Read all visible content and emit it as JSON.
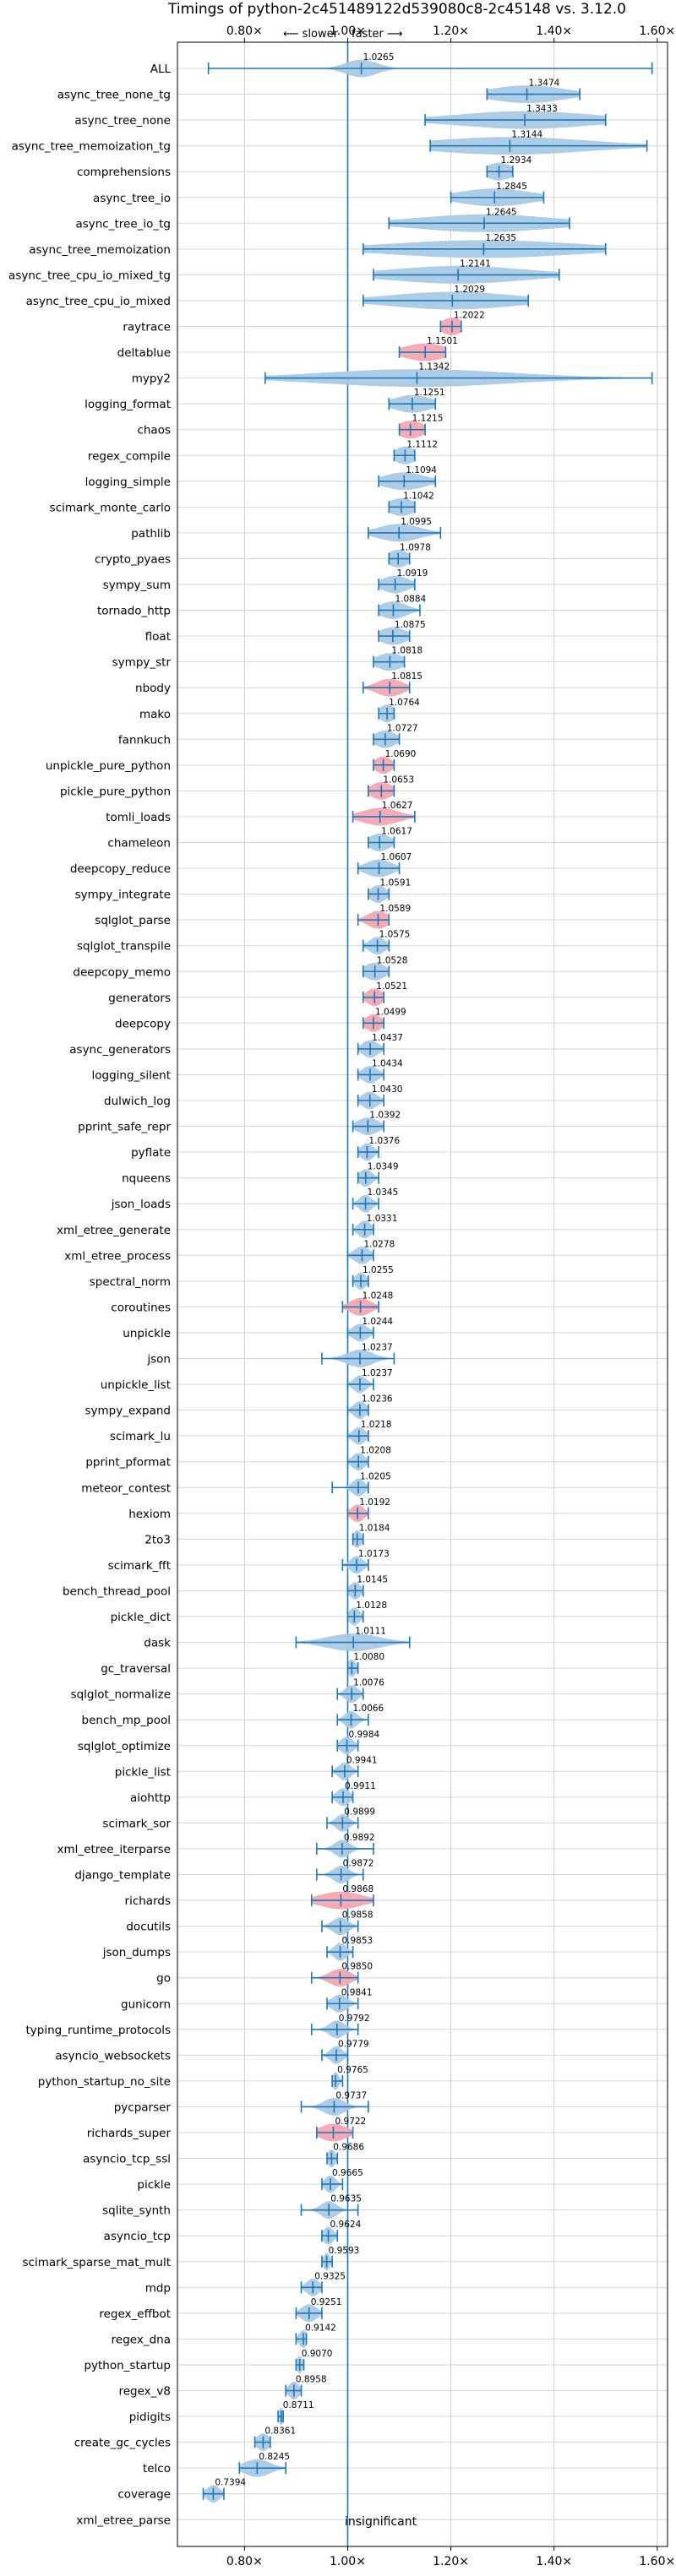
{
  "chart_data": {
    "type": "violin",
    "title": "Timings of python-2c451489122d539080c8-2c45148 vs. 3.12.0",
    "direction_labels": {
      "slower": "⟵ slower",
      "faster": "faster ⟶"
    },
    "x_ticks": [
      {
        "value": 0.8,
        "label": "0.80×"
      },
      {
        "value": 1.0,
        "label": "1.00×"
      },
      {
        "value": 1.2,
        "label": "1.20×"
      },
      {
        "value": 1.4,
        "label": "1.40×"
      },
      {
        "value": 1.6,
        "label": "1.60×"
      }
    ],
    "xlim": [
      0.67,
      1.62
    ],
    "grid": true,
    "annotation": "insignificant",
    "colors": {
      "normal": "#a9c9e4",
      "significant": "#f4a6b2",
      "line": "#1f77b4"
    },
    "benchmarks": [
      {
        "name": "ALL",
        "value": 1.0265,
        "min": 0.73,
        "max": 1.59,
        "spread": 0.03,
        "significant": false
      },
      {
        "name": "async_tree_none_tg",
        "value": 1.3474,
        "min": 1.27,
        "max": 1.45,
        "spread": 0.07,
        "significant": false
      },
      {
        "name": "async_tree_none",
        "value": 1.3433,
        "min": 1.15,
        "max": 1.5,
        "spread": 0.13,
        "significant": false
      },
      {
        "name": "async_tree_memoization_tg",
        "value": 1.3144,
        "min": 1.16,
        "max": 1.58,
        "spread": 0.15,
        "significant": false
      },
      {
        "name": "comprehensions",
        "value": 1.2934,
        "min": 1.27,
        "max": 1.32,
        "spread": 0.025,
        "significant": false
      },
      {
        "name": "async_tree_io",
        "value": 1.2845,
        "min": 1.2,
        "max": 1.38,
        "spread": 0.07,
        "significant": false
      },
      {
        "name": "async_tree_io_tg",
        "value": 1.2645,
        "min": 1.08,
        "max": 1.43,
        "spread": 0.13,
        "significant": false
      },
      {
        "name": "async_tree_memoization",
        "value": 1.2635,
        "min": 1.03,
        "max": 1.5,
        "spread": 0.18,
        "significant": false
      },
      {
        "name": "async_tree_cpu_io_mixed_tg",
        "value": 1.2141,
        "min": 1.05,
        "max": 1.41,
        "spread": 0.13,
        "significant": false
      },
      {
        "name": "async_tree_cpu_io_mixed",
        "value": 1.2029,
        "min": 1.03,
        "max": 1.35,
        "spread": 0.12,
        "significant": false
      },
      {
        "name": "raytrace",
        "value": 1.2022,
        "min": 1.18,
        "max": 1.22,
        "spread": 0.02,
        "significant": true
      },
      {
        "name": "deltablue",
        "value": 1.1501,
        "min": 1.1,
        "max": 1.19,
        "spread": 0.04,
        "significant": true
      },
      {
        "name": "mypy2",
        "value": 1.1342,
        "min": 0.84,
        "max": 1.59,
        "spread": 0.18,
        "significant": false
      },
      {
        "name": "logging_format",
        "value": 1.1251,
        "min": 1.08,
        "max": 1.17,
        "spread": 0.035,
        "significant": false
      },
      {
        "name": "chaos",
        "value": 1.1215,
        "min": 1.1,
        "max": 1.15,
        "spread": 0.025,
        "significant": true
      },
      {
        "name": "regex_compile",
        "value": 1.1112,
        "min": 1.09,
        "max": 1.13,
        "spread": 0.02,
        "significant": false
      },
      {
        "name": "logging_simple",
        "value": 1.1094,
        "min": 1.06,
        "max": 1.17,
        "spread": 0.04,
        "significant": false
      },
      {
        "name": "scimark_monte_carlo",
        "value": 1.1042,
        "min": 1.08,
        "max": 1.13,
        "spread": 0.025,
        "significant": false
      },
      {
        "name": "pathlib",
        "value": 1.0995,
        "min": 1.04,
        "max": 1.18,
        "spread": 0.04,
        "significant": false
      },
      {
        "name": "crypto_pyaes",
        "value": 1.0978,
        "min": 1.08,
        "max": 1.12,
        "spread": 0.02,
        "significant": false
      },
      {
        "name": "sympy_sum",
        "value": 1.0919,
        "min": 1.06,
        "max": 1.13,
        "spread": 0.025,
        "significant": false
      },
      {
        "name": "tornado_http",
        "value": 1.0884,
        "min": 1.06,
        "max": 1.14,
        "spread": 0.025,
        "significant": false
      },
      {
        "name": "float",
        "value": 1.0875,
        "min": 1.06,
        "max": 1.12,
        "spread": 0.025,
        "significant": false
      },
      {
        "name": "sympy_str",
        "value": 1.0818,
        "min": 1.05,
        "max": 1.11,
        "spread": 0.025,
        "significant": false
      },
      {
        "name": "nbody",
        "value": 1.0815,
        "min": 1.03,
        "max": 1.12,
        "spread": 0.025,
        "significant": true
      },
      {
        "name": "mako",
        "value": 1.0764,
        "min": 1.06,
        "max": 1.09,
        "spread": 0.015,
        "significant": false
      },
      {
        "name": "fannkuch",
        "value": 1.0727,
        "min": 1.05,
        "max": 1.1,
        "spread": 0.02,
        "significant": false
      },
      {
        "name": "unpickle_pure_python",
        "value": 1.069,
        "min": 1.05,
        "max": 1.09,
        "spread": 0.015,
        "significant": true
      },
      {
        "name": "pickle_pure_python",
        "value": 1.0653,
        "min": 1.04,
        "max": 1.09,
        "spread": 0.02,
        "significant": true
      },
      {
        "name": "tomli_loads",
        "value": 1.0627,
        "min": 1.01,
        "max": 1.13,
        "spread": 0.035,
        "significant": true
      },
      {
        "name": "chameleon",
        "value": 1.0617,
        "min": 1.04,
        "max": 1.09,
        "spread": 0.02,
        "significant": false
      },
      {
        "name": "deepcopy_reduce",
        "value": 1.0607,
        "min": 1.02,
        "max": 1.1,
        "spread": 0.025,
        "significant": false
      },
      {
        "name": "sympy_integrate",
        "value": 1.0591,
        "min": 1.04,
        "max": 1.08,
        "spread": 0.015,
        "significant": false
      },
      {
        "name": "sqlglot_parse",
        "value": 1.0589,
        "min": 1.02,
        "max": 1.08,
        "spread": 0.02,
        "significant": true
      },
      {
        "name": "sqlglot_transpile",
        "value": 1.0575,
        "min": 1.03,
        "max": 1.08,
        "spread": 0.015,
        "significant": false
      },
      {
        "name": "deepcopy_memo",
        "value": 1.0528,
        "min": 1.03,
        "max": 1.08,
        "spread": 0.02,
        "significant": false
      },
      {
        "name": "generators",
        "value": 1.0521,
        "min": 1.03,
        "max": 1.07,
        "spread": 0.015,
        "significant": true
      },
      {
        "name": "deepcopy",
        "value": 1.0499,
        "min": 1.03,
        "max": 1.07,
        "spread": 0.015,
        "significant": true
      },
      {
        "name": "async_generators",
        "value": 1.0437,
        "min": 1.02,
        "max": 1.07,
        "spread": 0.015,
        "significant": false
      },
      {
        "name": "logging_silent",
        "value": 1.0434,
        "min": 1.02,
        "max": 1.07,
        "spread": 0.015,
        "significant": false
      },
      {
        "name": "dulwich_log",
        "value": 1.043,
        "min": 1.02,
        "max": 1.07,
        "spread": 0.015,
        "significant": false
      },
      {
        "name": "pprint_safe_repr",
        "value": 1.0392,
        "min": 1.01,
        "max": 1.07,
        "spread": 0.02,
        "significant": false
      },
      {
        "name": "pyflate",
        "value": 1.0376,
        "min": 1.02,
        "max": 1.06,
        "spread": 0.012,
        "significant": false
      },
      {
        "name": "nqueens",
        "value": 1.0349,
        "min": 1.02,
        "max": 1.06,
        "spread": 0.012,
        "significant": false
      },
      {
        "name": "json_loads",
        "value": 1.0345,
        "min": 1.01,
        "max": 1.06,
        "spread": 0.012,
        "significant": false
      },
      {
        "name": "xml_etree_generate",
        "value": 1.0331,
        "min": 1.01,
        "max": 1.05,
        "spread": 0.012,
        "significant": false
      },
      {
        "name": "xml_etree_process",
        "value": 1.0278,
        "min": 1.0,
        "max": 1.05,
        "spread": 0.015,
        "significant": false
      },
      {
        "name": "spectral_norm",
        "value": 1.0255,
        "min": 1.01,
        "max": 1.04,
        "spread": 0.01,
        "significant": false
      },
      {
        "name": "coroutines",
        "value": 1.0248,
        "min": 0.99,
        "max": 1.06,
        "spread": 0.02,
        "significant": true
      },
      {
        "name": "unpickle",
        "value": 1.0244,
        "min": 1.0,
        "max": 1.05,
        "spread": 0.015,
        "significant": false
      },
      {
        "name": "json",
        "value": 1.0237,
        "min": 0.95,
        "max": 1.09,
        "spread": 0.025,
        "significant": false
      },
      {
        "name": "unpickle_list",
        "value": 1.0237,
        "min": 1.0,
        "max": 1.05,
        "spread": 0.012,
        "significant": false
      },
      {
        "name": "sympy_expand",
        "value": 1.0236,
        "min": 1.0,
        "max": 1.04,
        "spread": 0.012,
        "significant": false
      },
      {
        "name": "scimark_lu",
        "value": 1.0218,
        "min": 1.0,
        "max": 1.04,
        "spread": 0.012,
        "significant": false
      },
      {
        "name": "pprint_pformat",
        "value": 1.0208,
        "min": 1.0,
        "max": 1.04,
        "spread": 0.012,
        "significant": false
      },
      {
        "name": "meteor_contest",
        "value": 1.0205,
        "min": 0.97,
        "max": 1.04,
        "spread": 0.012,
        "significant": false
      },
      {
        "name": "hexiom",
        "value": 1.0192,
        "min": 1.0,
        "max": 1.04,
        "spread": 0.012,
        "significant": true
      },
      {
        "name": "2to3",
        "value": 1.0184,
        "min": 1.01,
        "max": 1.03,
        "spread": 0.008,
        "significant": false
      },
      {
        "name": "scimark_fft",
        "value": 1.0173,
        "min": 0.99,
        "max": 1.04,
        "spread": 0.012,
        "significant": false
      },
      {
        "name": "bench_thread_pool",
        "value": 1.0145,
        "min": 1.0,
        "max": 1.03,
        "spread": 0.01,
        "significant": false
      },
      {
        "name": "pickle_dict",
        "value": 1.0128,
        "min": 1.0,
        "max": 1.03,
        "spread": 0.01,
        "significant": false
      },
      {
        "name": "dask",
        "value": 1.0111,
        "min": 0.9,
        "max": 1.12,
        "spread": 0.05,
        "significant": false
      },
      {
        "name": "gc_traversal",
        "value": 1.008,
        "min": 1.0,
        "max": 1.02,
        "spread": 0.008,
        "significant": false
      },
      {
        "name": "sqlglot_normalize",
        "value": 1.0076,
        "min": 0.98,
        "max": 1.03,
        "spread": 0.012,
        "significant": false
      },
      {
        "name": "bench_mp_pool",
        "value": 1.0066,
        "min": 0.98,
        "max": 1.04,
        "spread": 0.012,
        "significant": false
      },
      {
        "name": "sqlglot_optimize",
        "value": 0.9984,
        "min": 0.98,
        "max": 1.02,
        "spread": 0.012,
        "significant": false
      },
      {
        "name": "pickle_list",
        "value": 0.9941,
        "min": 0.97,
        "max": 1.02,
        "spread": 0.012,
        "significant": false
      },
      {
        "name": "aiohttp",
        "value": 0.9911,
        "min": 0.97,
        "max": 1.01,
        "spread": 0.012,
        "significant": false
      },
      {
        "name": "scimark_sor",
        "value": 0.9899,
        "min": 0.96,
        "max": 1.02,
        "spread": 0.012,
        "significant": false
      },
      {
        "name": "xml_etree_iterparse",
        "value": 0.9892,
        "min": 0.94,
        "max": 1.05,
        "spread": 0.015,
        "significant": false
      },
      {
        "name": "django_template",
        "value": 0.9872,
        "min": 0.94,
        "max": 1.03,
        "spread": 0.015,
        "significant": false
      },
      {
        "name": "richards",
        "value": 0.9868,
        "min": 0.93,
        "max": 1.05,
        "spread": 0.04,
        "significant": true
      },
      {
        "name": "docutils",
        "value": 0.9858,
        "min": 0.95,
        "max": 1.02,
        "spread": 0.015,
        "significant": false
      },
      {
        "name": "json_dumps",
        "value": 0.9853,
        "min": 0.96,
        "max": 1.01,
        "spread": 0.012,
        "significant": false
      },
      {
        "name": "go",
        "value": 0.985,
        "min": 0.93,
        "max": 1.02,
        "spread": 0.02,
        "significant": true
      },
      {
        "name": "gunicorn",
        "value": 0.9841,
        "min": 0.96,
        "max": 1.02,
        "spread": 0.015,
        "significant": false
      },
      {
        "name": "typing_runtime_protocols",
        "value": 0.9792,
        "min": 0.93,
        "max": 1.02,
        "spread": 0.015,
        "significant": false
      },
      {
        "name": "asyncio_websockets",
        "value": 0.9779,
        "min": 0.95,
        "max": 1.0,
        "spread": 0.012,
        "significant": false
      },
      {
        "name": "python_startup_no_site",
        "value": 0.9765,
        "min": 0.97,
        "max": 0.99,
        "spread": 0.006,
        "significant": false
      },
      {
        "name": "pycparser",
        "value": 0.9737,
        "min": 0.91,
        "max": 1.04,
        "spread": 0.02,
        "significant": false
      },
      {
        "name": "richards_super",
        "value": 0.9722,
        "min": 0.94,
        "max": 1.01,
        "spread": 0.025,
        "significant": true
      },
      {
        "name": "asyncio_tcp_ssl",
        "value": 0.9686,
        "min": 0.96,
        "max": 0.98,
        "spread": 0.008,
        "significant": false
      },
      {
        "name": "pickle",
        "value": 0.9665,
        "min": 0.95,
        "max": 0.99,
        "spread": 0.01,
        "significant": false
      },
      {
        "name": "sqlite_synth",
        "value": 0.9635,
        "min": 0.91,
        "max": 1.02,
        "spread": 0.015,
        "significant": false
      },
      {
        "name": "asyncio_tcp",
        "value": 0.9624,
        "min": 0.95,
        "max": 0.98,
        "spread": 0.01,
        "significant": false
      },
      {
        "name": "scimark_sparse_mat_mult",
        "value": 0.9593,
        "min": 0.95,
        "max": 0.97,
        "spread": 0.006,
        "significant": false
      },
      {
        "name": "mdp",
        "value": 0.9325,
        "min": 0.91,
        "max": 0.95,
        "spread": 0.012,
        "significant": false
      },
      {
        "name": "regex_effbot",
        "value": 0.9251,
        "min": 0.9,
        "max": 0.95,
        "spread": 0.015,
        "significant": false
      },
      {
        "name": "regex_dna",
        "value": 0.9142,
        "min": 0.9,
        "max": 0.92,
        "spread": 0.008,
        "significant": false
      },
      {
        "name": "python_startup",
        "value": 0.907,
        "min": 0.9,
        "max": 0.915,
        "spread": 0.005,
        "significant": false
      },
      {
        "name": "regex_v8",
        "value": 0.8958,
        "min": 0.88,
        "max": 0.91,
        "spread": 0.01,
        "significant": false
      },
      {
        "name": "pidigits",
        "value": 0.8711,
        "min": 0.865,
        "max": 0.875,
        "spread": 0.004,
        "significant": false
      },
      {
        "name": "create_gc_cycles",
        "value": 0.8361,
        "min": 0.82,
        "max": 0.85,
        "spread": 0.012,
        "significant": false
      },
      {
        "name": "telco",
        "value": 0.8245,
        "min": 0.79,
        "max": 0.88,
        "spread": 0.025,
        "significant": false
      },
      {
        "name": "coverage",
        "value": 0.7394,
        "min": 0.72,
        "max": 0.76,
        "spread": 0.012,
        "significant": false
      },
      {
        "name": "xml_etree_parse",
        "value": null,
        "min": null,
        "max": null,
        "spread": 0,
        "significant": false
      }
    ]
  }
}
